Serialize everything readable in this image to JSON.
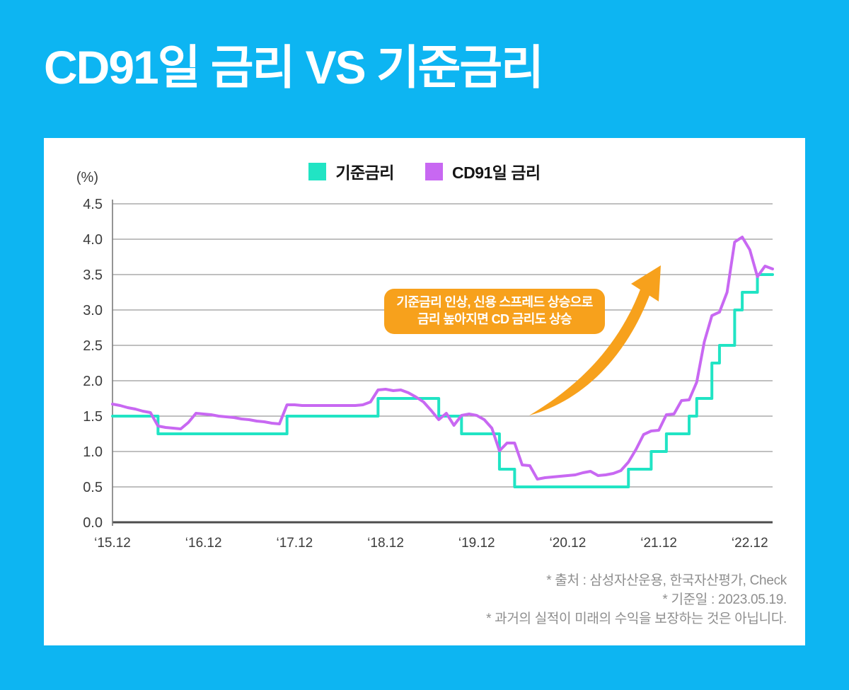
{
  "page": {
    "background_color": "#0db5f2",
    "card_color": "#ffffff"
  },
  "chart_data": {
    "type": "line",
    "title": "CD91일 금리 VS 기준금리",
    "unit_label": "(%)",
    "ylim": [
      0,
      4.5
    ],
    "grid": true,
    "legend_position": "top-center",
    "x_interval": "monthly",
    "y_ticks": [
      {
        "value": 4.5,
        "label": "4.5"
      },
      {
        "value": 4.0,
        "label": "4.0"
      },
      {
        "value": 3.5,
        "label": "3.5"
      },
      {
        "value": 3.0,
        "label": "3.0"
      },
      {
        "value": 2.5,
        "label": "2.5"
      },
      {
        "value": 2.0,
        "label": "2.0"
      },
      {
        "value": 1.5,
        "label": "1.5"
      },
      {
        "value": 1.0,
        "label": "1.0"
      },
      {
        "value": 0.5,
        "label": "0.5"
      },
      {
        "value": 0.0,
        "label": "0.0"
      }
    ],
    "x_ticks": [
      {
        "month_index": 0,
        "label": "‘15.12"
      },
      {
        "month_index": 12,
        "label": "‘16.12"
      },
      {
        "month_index": 24,
        "label": "‘17.12"
      },
      {
        "month_index": 36,
        "label": "‘18.12"
      },
      {
        "month_index": 48,
        "label": "‘19.12"
      },
      {
        "month_index": 60,
        "label": "‘20.12"
      },
      {
        "month_index": 72,
        "label": "‘21.12"
      },
      {
        "month_index": 84,
        "label": "‘22.12"
      }
    ],
    "legend": [
      {
        "label": "기준금리",
        "color": "#21e4c4"
      },
      {
        "label": "CD91일 금리",
        "color": "#c868f2"
      }
    ],
    "series": [
      {
        "name": "기준금리",
        "color": "#21e4c4",
        "style": "step",
        "values": [
          1.5,
          1.5,
          1.5,
          1.5,
          1.5,
          1.5,
          1.25,
          1.25,
          1.25,
          1.25,
          1.25,
          1.25,
          1.25,
          1.25,
          1.25,
          1.25,
          1.25,
          1.25,
          1.25,
          1.25,
          1.25,
          1.25,
          1.25,
          1.5,
          1.5,
          1.5,
          1.5,
          1.5,
          1.5,
          1.5,
          1.5,
          1.5,
          1.5,
          1.5,
          1.5,
          1.75,
          1.75,
          1.75,
          1.75,
          1.75,
          1.75,
          1.75,
          1.75,
          1.5,
          1.5,
          1.5,
          1.25,
          1.25,
          1.25,
          1.25,
          1.25,
          0.75,
          0.75,
          0.5,
          0.5,
          0.5,
          0.5,
          0.5,
          0.5,
          0.5,
          0.5,
          0.5,
          0.5,
          0.5,
          0.5,
          0.5,
          0.5,
          0.5,
          0.75,
          0.75,
          0.75,
          1.0,
          1.0,
          1.25,
          1.25,
          1.25,
          1.5,
          1.75,
          1.75,
          2.25,
          2.5,
          2.5,
          3.0,
          3.25,
          3.25,
          3.5,
          3.5,
          3.5
        ]
      },
      {
        "name": "CD91일 금리",
        "color": "#c868f2",
        "style": "line",
        "values": [
          1.67,
          1.65,
          1.62,
          1.6,
          1.57,
          1.55,
          1.36,
          1.34,
          1.33,
          1.32,
          1.41,
          1.54,
          1.53,
          1.52,
          1.5,
          1.49,
          1.48,
          1.46,
          1.45,
          1.43,
          1.42,
          1.4,
          1.39,
          1.66,
          1.66,
          1.65,
          1.65,
          1.65,
          1.65,
          1.65,
          1.65,
          1.65,
          1.65,
          1.66,
          1.7,
          1.87,
          1.88,
          1.86,
          1.87,
          1.83,
          1.77,
          1.7,
          1.58,
          1.45,
          1.54,
          1.37,
          1.51,
          1.53,
          1.51,
          1.45,
          1.33,
          1.01,
          1.12,
          1.12,
          0.81,
          0.8,
          0.61,
          0.63,
          0.64,
          0.65,
          0.66,
          0.67,
          0.7,
          0.72,
          0.66,
          0.67,
          0.69,
          0.73,
          0.85,
          1.03,
          1.24,
          1.29,
          1.3,
          1.52,
          1.53,
          1.72,
          1.73,
          1.98,
          2.55,
          2.92,
          2.97,
          3.25,
          3.96,
          4.03,
          3.85,
          3.47,
          3.62,
          3.58
        ]
      }
    ],
    "annotation": {
      "line1": "기준금리 인상, 신용 스프레드 상승으로",
      "line2": "금리 높아지면 CD 금리도 상승",
      "bg_color": "#f7a11c"
    },
    "arrow_color": "#f7a11c"
  },
  "footnotes": [
    "* 출처 : 삼성자산운용, 한국자산평가, Check",
    "* 기준일 : 2023.05.19.",
    "* 과거의 실적이 미래의 수익을 보장하는 것은 아닙니다."
  ]
}
